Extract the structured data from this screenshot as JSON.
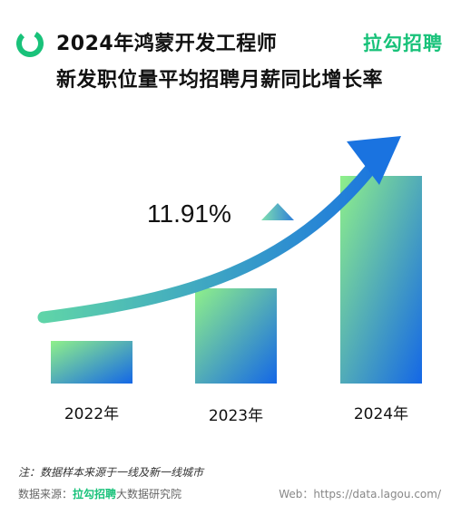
{
  "header": {
    "title_line1": "2024年鸿蒙开发工程师",
    "title_line2": "新发职位量平均招聘月薪同比增长率",
    "brand": "拉勾招聘",
    "logo_icon": "green-ring-logo-icon"
  },
  "chart_data": {
    "type": "bar",
    "title": "2024年鸿蒙开发工程师新发职位量平均招聘月薪同比增长率",
    "categories": [
      "2022年",
      "2023年",
      "2024年"
    ],
    "values": [
      47,
      105,
      229
    ],
    "ylim": [
      0,
      250
    ],
    "annotation": "11.91%",
    "annotation_icon": "triangle-up-icon",
    "trend_arrow": true,
    "grid": false,
    "colors": {
      "bar_top": "#8ff08a",
      "bar_bottom": "#1467e6",
      "arrow_start": "#5fd4a8",
      "arrow_end": "#1a73e0",
      "annotation_triangle": "#2f7fd8"
    }
  },
  "footer": {
    "note": "注：数据样本来源于一线及新一线城市",
    "source_prefix": "数据来源：",
    "source_brand": "拉勾招聘",
    "source_suffix": "大数据研究院",
    "web": "Web：https://data.lagou.com/"
  }
}
